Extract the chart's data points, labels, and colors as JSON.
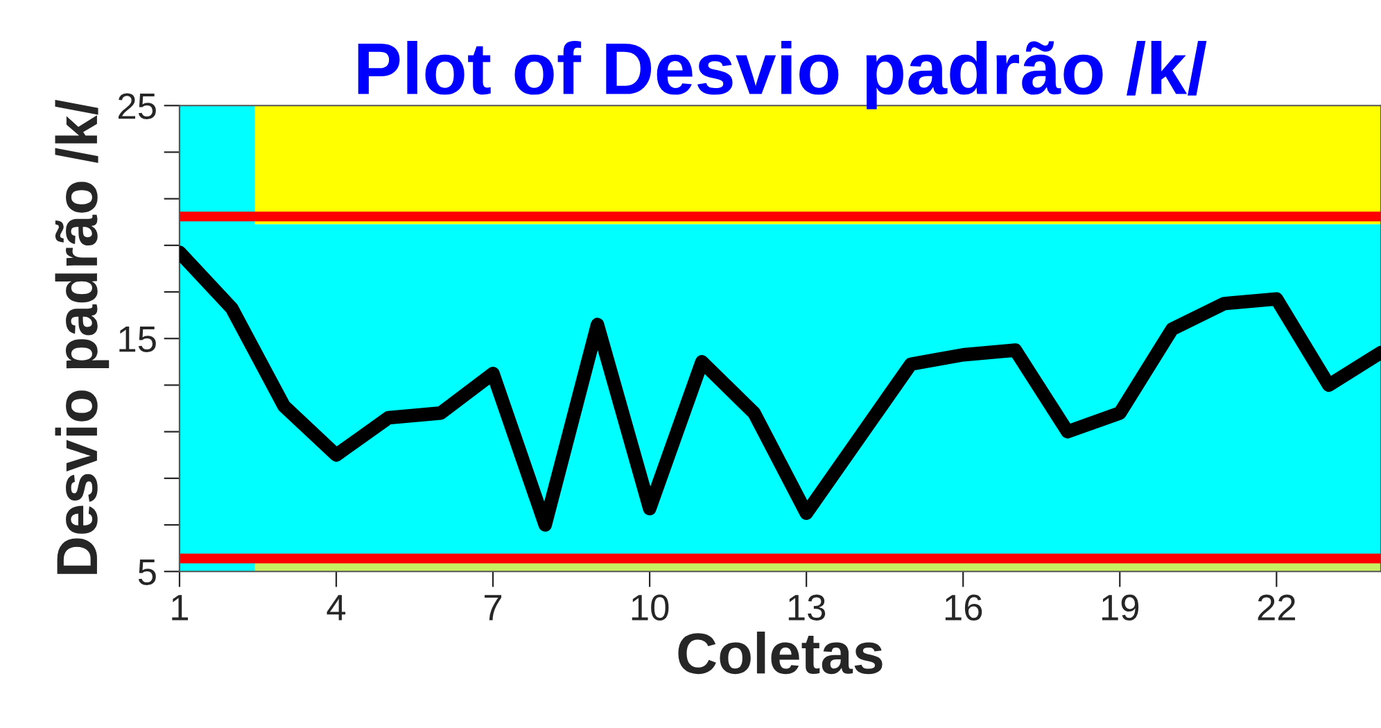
{
  "chart_data": {
    "type": "line",
    "title": "Plot of Desvio padrão /k/",
    "xlabel": "Coletas",
    "ylabel": "Desvio padrão /k/",
    "x": [
      1,
      2,
      3,
      4,
      5,
      6,
      7,
      8,
      9,
      10,
      11,
      12,
      13,
      14,
      15,
      16,
      17,
      18,
      19,
      20,
      21,
      22,
      23,
      24
    ],
    "series": [
      {
        "color": "#000000",
        "values": [
          18.7,
          16.3,
          12.1,
          10.0,
          11.6,
          11.8,
          13.5,
          7.0,
          15.6,
          7.7,
          14.0,
          11.8,
          7.5,
          10.7,
          13.9,
          14.3,
          14.5,
          11.0,
          11.8,
          15.4,
          16.5,
          16.7,
          13.0,
          14.4
        ]
      }
    ],
    "xlim": [
      1,
      24
    ],
    "ylim": [
      5,
      25
    ],
    "xticks": [
      1,
      4,
      7,
      10,
      13,
      16,
      19,
      22
    ],
    "yticks": [
      5,
      {
        "value": 7,
        "label": null
      },
      {
        "value": 9,
        "label": null
      },
      {
        "value": 11,
        "label": null
      },
      {
        "value": 13,
        "label": null
      },
      15,
      {
        "value": 17,
        "label": null
      },
      {
        "value": 19,
        "label": null
      },
      {
        "value": 21,
        "label": null
      },
      {
        "value": 23,
        "label": null
      },
      25
    ],
    "bands": [
      {
        "axis": "y",
        "from": 19.9,
        "to": 25,
        "color": "#ffff00"
      },
      {
        "axis": "y",
        "from": 5.7,
        "to": 19.9,
        "color": "#00ffff"
      },
      {
        "axis": "y",
        "from": 5,
        "to": 5.7,
        "color": "#c8f060"
      },
      {
        "axis": "x",
        "from": 1,
        "to": 2.44,
        "color": "#00ffff"
      }
    ],
    "ref_lines": [
      {
        "axis": "y",
        "value": 20.24,
        "color": "#ff0000"
      },
      {
        "axis": "y",
        "value": 5.56,
        "color": "#ff0000"
      }
    ],
    "grid": false,
    "marker": "none",
    "line_style": "solid"
  }
}
